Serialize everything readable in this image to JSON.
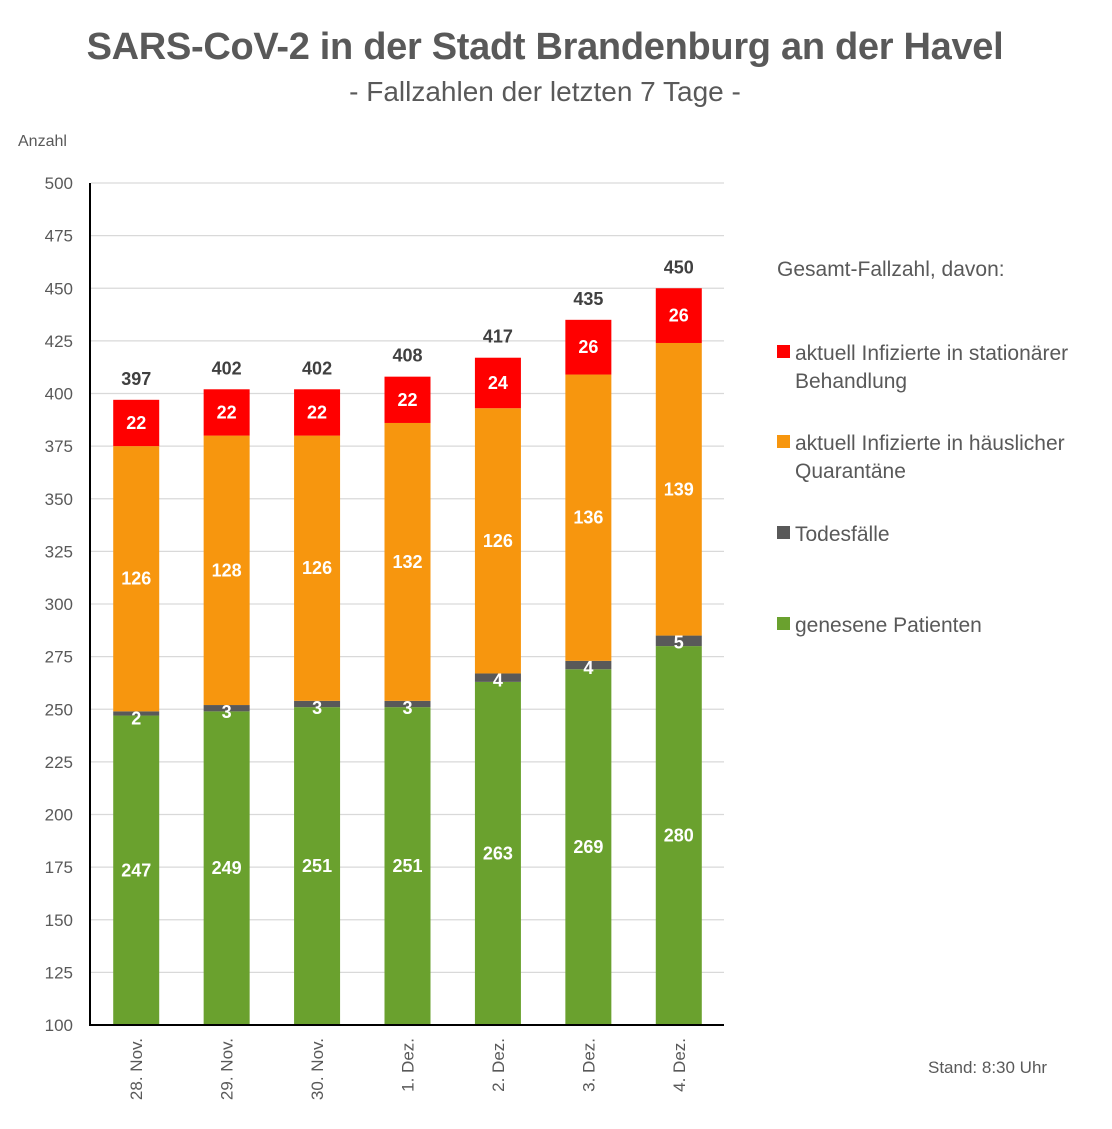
{
  "chart_data": {
    "type": "bar",
    "stacked": true,
    "title": "SARS-CoV-2 in der Stadt Brandenburg an der Havel",
    "subtitle": "- Fallzahlen der letzten 7 Tage -",
    "xlabel": "",
    "ylabel": "Anzahl",
    "ylim": [
      100,
      500
    ],
    "yticks": [
      100,
      125,
      150,
      175,
      200,
      225,
      250,
      275,
      300,
      325,
      350,
      375,
      400,
      425,
      450,
      475,
      500
    ],
    "grid": true,
    "categories": [
      "28. Nov.",
      "29. Nov.",
      "30. Nov.",
      "1. Dez.",
      "2. Dez.",
      "3. Dez.",
      "4. Dez."
    ],
    "series": [
      {
        "name": "genesene Patienten",
        "color": "#6aa12e",
        "values": [
          247,
          249,
          251,
          251,
          263,
          269,
          280
        ]
      },
      {
        "name": "Todesfälle",
        "color": "#595959",
        "values": [
          2,
          3,
          3,
          3,
          4,
          4,
          5
        ]
      },
      {
        "name": "aktuell Infizierte in häuslicher Quarantäne",
        "color": "#f7960e",
        "values": [
          126,
          128,
          126,
          132,
          126,
          136,
          139
        ]
      },
      {
        "name": "aktuell Infizierte in stationärer Behandlung",
        "color": "#ff0000",
        "values": [
          22,
          22,
          22,
          22,
          24,
          26,
          26
        ]
      }
    ],
    "totals": [
      397,
      402,
      402,
      408,
      417,
      435,
      450
    ],
    "legend_title": "Gesamt-Fallzahl, davon:",
    "legend_position": "right",
    "annotation": "Stand: 8:30 Uhr"
  },
  "legend": {
    "title": "Gesamt-Fallzahl, davon:",
    "items": [
      {
        "label": "aktuell Infizierte in stationärer Behandlung",
        "color": "#ff0000"
      },
      {
        "label": "aktuell Infizierte in häuslicher Quarantäne",
        "color": "#f7960e"
      },
      {
        "label": "Todesfälle",
        "color": "#595959"
      },
      {
        "label": "genesene Patienten",
        "color": "#6aa12e"
      }
    ]
  },
  "footer": {
    "stand": "Stand: 8:30 Uhr"
  }
}
